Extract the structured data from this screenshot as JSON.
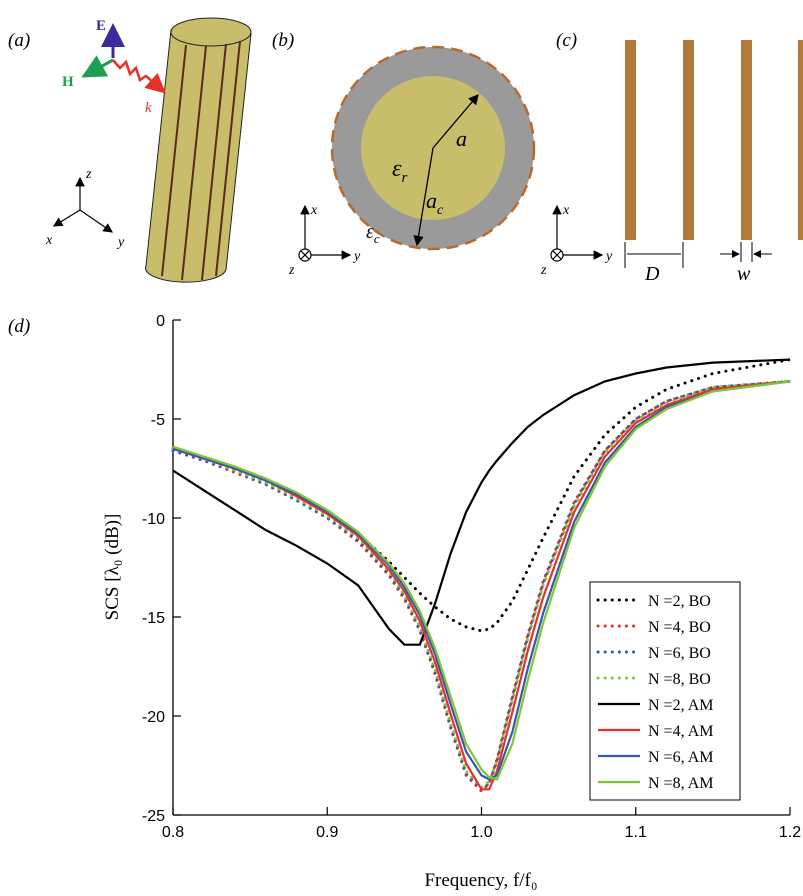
{
  "panels": {
    "a": {
      "label": "(a)",
      "E": "E",
      "H": "H",
      "k": "k",
      "axes": [
        "z",
        "x",
        "y"
      ]
    },
    "b": {
      "label": "(b)",
      "eps_r": {
        "symbol": "ε",
        "subscript": "r"
      },
      "a": "a",
      "a_c": {
        "symbol": "a",
        "subscript": "c"
      },
      "eps_c": {
        "symbol": "ε",
        "subscript": "c"
      },
      "axes": [
        "x",
        "z",
        "y"
      ]
    },
    "c": {
      "label": "(c)",
      "D": "D",
      "w": "w",
      "axes": [
        "x",
        "z",
        "y"
      ]
    }
  },
  "chart_data": {
    "type": "line",
    "panel_label": "(d)",
    "x_label": "Frequency, f/f₀",
    "y_label": "SCS [λ₀ (dB)]",
    "x": [
      0.8,
      0.82,
      0.84,
      0.86,
      0.88,
      0.9,
      0.92,
      0.94,
      0.95,
      0.96,
      0.97,
      0.98,
      0.99,
      1.0,
      1.005,
      1.01,
      1.02,
      1.03,
      1.04,
      1.06,
      1.08,
      1.1,
      1.12,
      1.15,
      1.2
    ],
    "series": [
      {
        "name": "N =2, BO",
        "color": "#000000",
        "style": "dotted",
        "values": [
          -6.5,
          -7.0,
          -7.5,
          -8.2,
          -8.9,
          -9.8,
          -10.8,
          -12.2,
          -13.0,
          -13.8,
          -14.5,
          -15.1,
          -15.5,
          -15.7,
          -15.6,
          -15.3,
          -14.2,
          -12.6,
          -11.0,
          -7.9,
          -5.8,
          -4.4,
          -3.5,
          -2.7,
          -2.0
        ]
      },
      {
        "name": "N =4, BO",
        "color": "#e8302a",
        "style": "dotted",
        "values": [
          -6.6,
          -7.1,
          -7.7,
          -8.3,
          -9.1,
          -10.0,
          -11.2,
          -12.9,
          -14.1,
          -15.7,
          -17.9,
          -20.6,
          -23.0,
          -23.8,
          -23.4,
          -22.2,
          -19.0,
          -15.9,
          -13.2,
          -9.2,
          -6.6,
          -5.0,
          -4.1,
          -3.4,
          -3.1
        ]
      },
      {
        "name": "N =6, BO",
        "color": "#3a56b4",
        "style": "dotted",
        "values": [
          -6.6,
          -7.1,
          -7.6,
          -8.3,
          -9.1,
          -10.0,
          -11.1,
          -12.8,
          -14.0,
          -15.6,
          -17.8,
          -20.5,
          -22.9,
          -23.7,
          -23.4,
          -22.3,
          -19.1,
          -16.0,
          -13.3,
          -9.3,
          -6.6,
          -5.0,
          -4.1,
          -3.4,
          -3.1
        ]
      },
      {
        "name": "N =8, BO",
        "color": "#7dc832",
        "style": "dotted",
        "values": [
          -6.5,
          -7.0,
          -7.6,
          -8.2,
          -9.0,
          -9.9,
          -11.0,
          -12.7,
          -13.9,
          -15.5,
          -17.7,
          -20.4,
          -22.8,
          -23.6,
          -23.3,
          -22.3,
          -19.2,
          -16.1,
          -13.4,
          -9.4,
          -6.7,
          -5.1,
          -4.2,
          -3.4,
          -3.1
        ]
      },
      {
        "name": "N =2, AM",
        "color": "#000000",
        "style": "solid",
        "values": [
          -7.6,
          -8.6,
          -9.6,
          -10.6,
          -11.4,
          -12.3,
          -13.4,
          -15.6,
          -16.4,
          -16.4,
          -14.3,
          -11.8,
          -9.7,
          -8.2,
          -7.6,
          -7.1,
          -6.2,
          -5.4,
          -4.8,
          -3.8,
          -3.1,
          -2.7,
          -2.4,
          -2.15,
          -2.0
        ]
      },
      {
        "name": "N =4, AM",
        "color": "#e8302a",
        "style": "solid",
        "values": [
          -6.5,
          -7.0,
          -7.5,
          -8.1,
          -8.9,
          -9.8,
          -10.9,
          -12.6,
          -13.7,
          -15.2,
          -17.3,
          -19.9,
          -22.4,
          -23.7,
          -23.7,
          -22.8,
          -19.8,
          -16.7,
          -14.0,
          -9.7,
          -6.9,
          -5.2,
          -4.3,
          -3.5,
          -3.1
        ]
      },
      {
        "name": "N =6, AM",
        "color": "#3a56b4",
        "style": "solid",
        "values": [
          -6.5,
          -7.0,
          -7.5,
          -8.1,
          -8.8,
          -9.7,
          -10.8,
          -12.4,
          -13.5,
          -14.9,
          -16.9,
          -19.4,
          -21.8,
          -23.0,
          -23.2,
          -23.0,
          -20.8,
          -17.6,
          -14.8,
          -10.2,
          -7.2,
          -5.4,
          -4.4,
          -3.6,
          -3.1
        ]
      },
      {
        "name": "N =8, AM",
        "color": "#7dc832",
        "style": "solid",
        "values": [
          -6.4,
          -6.9,
          -7.4,
          -8.0,
          -8.7,
          -9.6,
          -10.7,
          -12.3,
          -13.3,
          -14.7,
          -16.6,
          -19.0,
          -21.4,
          -22.7,
          -23.1,
          -23.2,
          -21.4,
          -18.2,
          -15.3,
          -10.5,
          -7.4,
          -5.5,
          -4.5,
          -3.6,
          -3.1
        ]
      }
    ],
    "xlim": [
      0.8,
      1.2
    ],
    "ylim": [
      -25,
      0
    ],
    "xticks": [
      0.8,
      0.9,
      {
        "value": 1,
        "label": "1.0"
      },
      1.1,
      1.2
    ],
    "yticks": [
      0,
      -5,
      -10,
      -15,
      -20,
      -25
    ],
    "legend": "lower right"
  }
}
